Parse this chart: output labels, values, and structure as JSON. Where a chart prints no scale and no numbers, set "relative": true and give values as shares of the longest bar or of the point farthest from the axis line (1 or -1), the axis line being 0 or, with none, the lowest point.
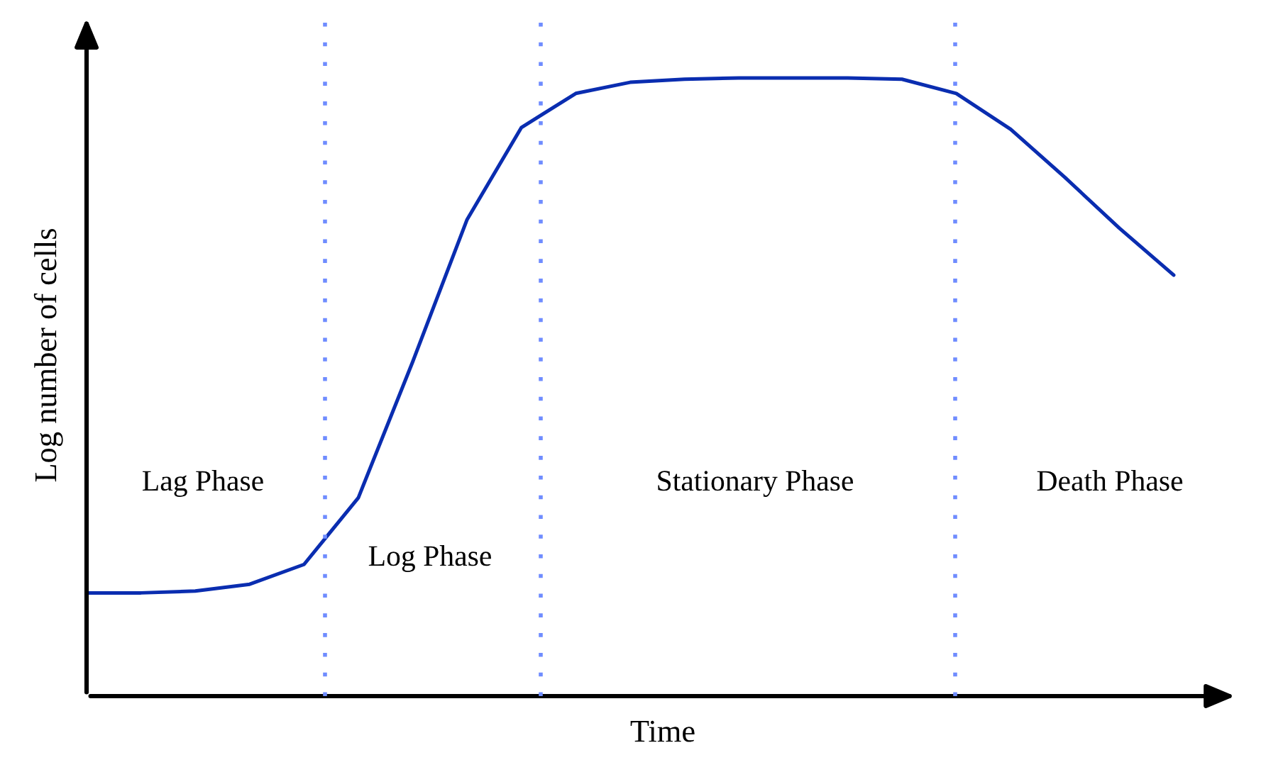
{
  "chart_data": {
    "type": "line",
    "relative": true,
    "xlabel": "Time",
    "ylabel": "Log number of cells",
    "categories": [
      null,
      null,
      null,
      null,
      null,
      null,
      null,
      null,
      null,
      null,
      null,
      null,
      null,
      null,
      null,
      null,
      null,
      null,
      null,
      null,
      null
    ],
    "series": [
      {
        "color": "#0a2db0",
        "values": [
          0.167,
          0.167,
          0.17,
          0.181,
          0.213,
          0.321,
          0.541,
          0.771,
          0.92,
          0.975,
          0.993,
          0.998,
          1,
          1,
          1,
          0.998,
          0.975,
          0.917,
          0.839,
          0.757,
          0.681
        ]
      }
    ],
    "annotations": [
      "Lag Phase",
      "Log Phase",
      "Stationary Phase",
      "Death Phase"
    ],
    "tick_labels": false
  }
}
